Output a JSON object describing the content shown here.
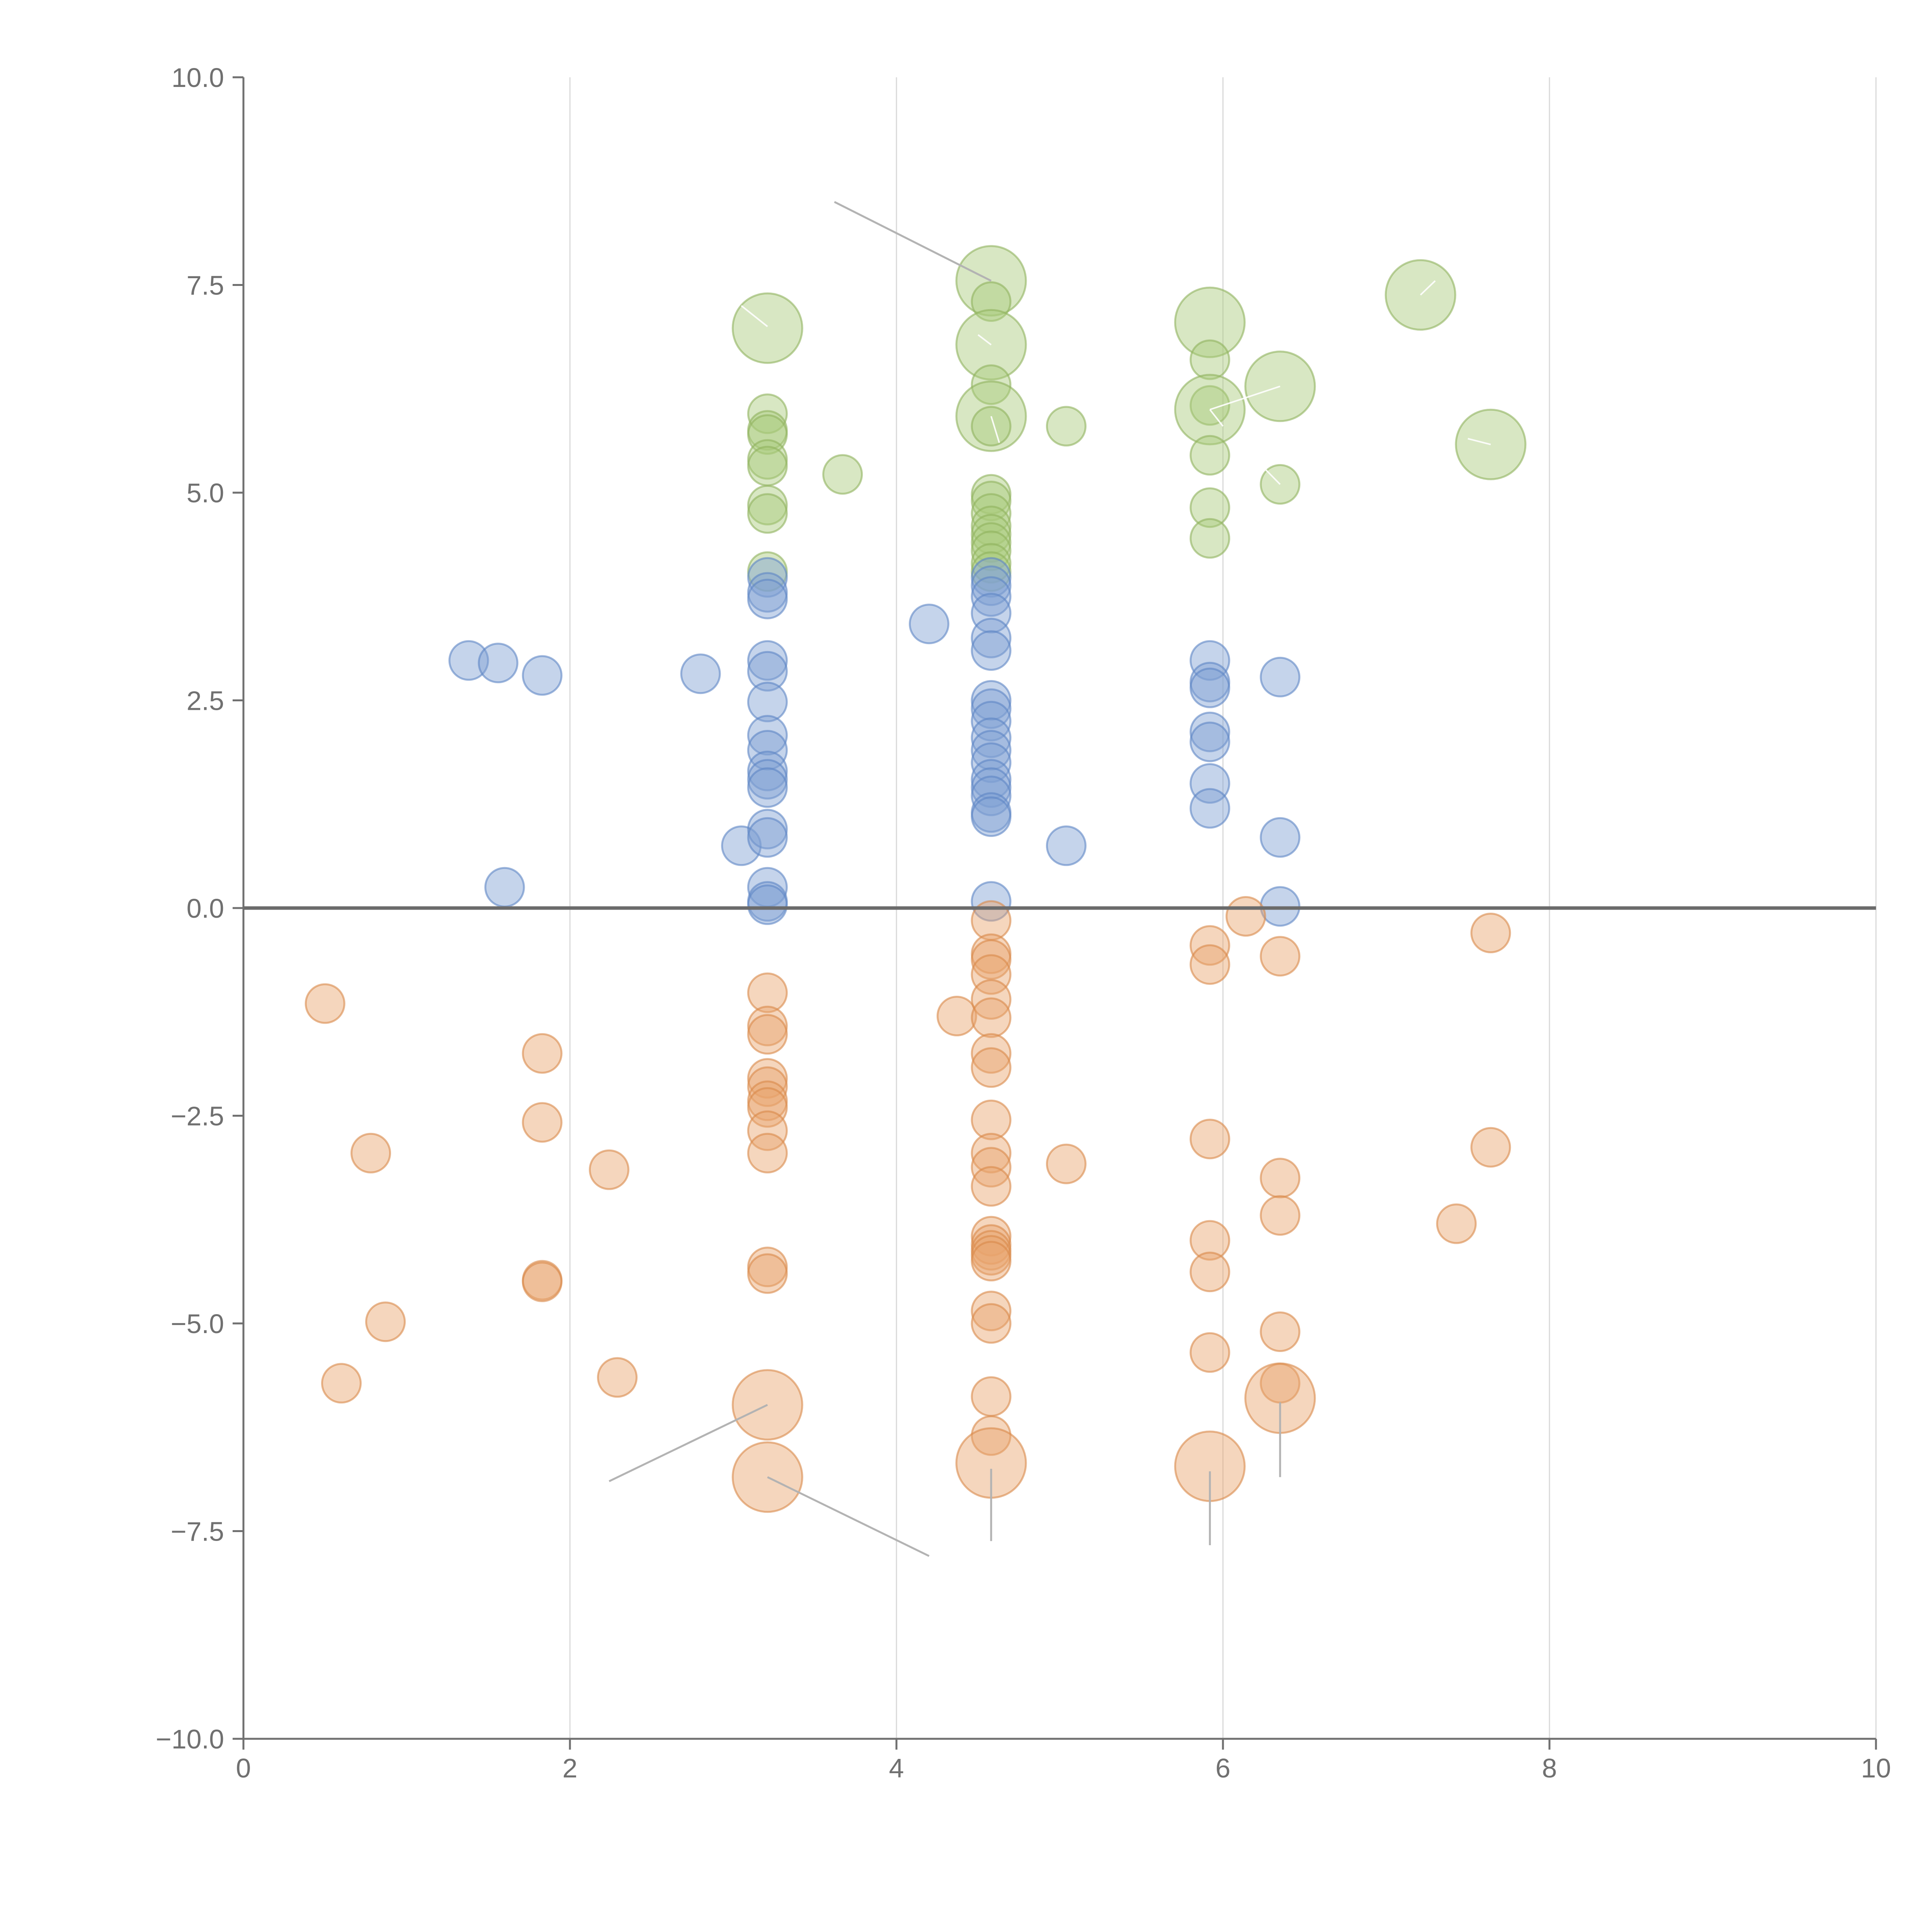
{
  "colors": {
    "green_fill": "#a9c97a",
    "green_stroke": "#8fb35e",
    "blue_fill": "#7fa0d2",
    "blue_stroke": "#5d86c4",
    "orange_fill": "#e9a46c",
    "orange_stroke": "#d9894a",
    "axis": "#707070",
    "grid": "#d9d9d9",
    "zero": "#6b6b6b",
    "leader": "#b3b3b3"
  },
  "chart_data": {
    "type": "scatter",
    "title": "",
    "xlabel": "",
    "ylabel": "",
    "xlim": [
      0,
      10
    ],
    "ylim": [
      -10,
      10
    ],
    "x_ticks": [
      "0",
      "2",
      "4",
      "6",
      "8",
      "10"
    ],
    "y_ticks": [
      "10.0",
      "7.5",
      "5.0",
      "2.5",
      "0.0",
      "−2.5",
      "−5.0",
      "−7.5",
      "−10.0"
    ],
    "grid": "vertical",
    "zero_line": true,
    "series": [
      {
        "color": "green",
        "points": [
          [
            4.58,
            7.55,
            3
          ],
          [
            4.58,
            7.3,
            1
          ],
          [
            4.58,
            6.78,
            3
          ],
          [
            4.58,
            6.3,
            1
          ],
          [
            4.58,
            5.92,
            3
          ],
          [
            4.58,
            5.8,
            1
          ],
          [
            4.58,
            4.98,
            1
          ],
          [
            4.58,
            4.9,
            1
          ],
          [
            4.58,
            4.75,
            1
          ],
          [
            4.58,
            4.6,
            1
          ],
          [
            4.58,
            4.5,
            1
          ],
          [
            4.58,
            4.4,
            1
          ],
          [
            4.58,
            4.3,
            1
          ],
          [
            4.58,
            4.15,
            1
          ],
          [
            4.58,
            4.05,
            1
          ],
          [
            3.21,
            6.98,
            3
          ],
          [
            3.21,
            5.95,
            1
          ],
          [
            3.21,
            5.75,
            1
          ],
          [
            3.21,
            5.7,
            1
          ],
          [
            3.21,
            5.4,
            1
          ],
          [
            3.21,
            5.32,
            1
          ],
          [
            3.21,
            4.85,
            1
          ],
          [
            3.21,
            4.75,
            1
          ],
          [
            3.21,
            4.05,
            1
          ],
          [
            3.67,
            5.22,
            1
          ],
          [
            5.04,
            5.8,
            1
          ],
          [
            5.92,
            7.05,
            3
          ],
          [
            5.92,
            6.6,
            1
          ],
          [
            5.92,
            6.05,
            1
          ],
          [
            5.92,
            6.0,
            3
          ],
          [
            5.92,
            5.45,
            1
          ],
          [
            5.92,
            4.82,
            1
          ],
          [
            5.92,
            4.45,
            1
          ],
          [
            6.35,
            6.28,
            3
          ],
          [
            6.35,
            5.1,
            1
          ],
          [
            7.21,
            7.38,
            3
          ],
          [
            7.64,
            5.58,
            3
          ]
        ]
      },
      {
        "color": "blue",
        "points": [
          [
            1.38,
            2.98,
            1
          ],
          [
            1.56,
            2.95,
            1
          ],
          [
            1.83,
            2.8,
            1
          ],
          [
            2.8,
            2.82,
            1
          ],
          [
            1.6,
            0.25,
            1
          ],
          [
            3.05,
            0.75,
            1
          ],
          [
            3.21,
            3.98,
            1
          ],
          [
            3.21,
            3.8,
            1
          ],
          [
            3.21,
            3.72,
            1
          ],
          [
            3.21,
            2.98,
            1
          ],
          [
            3.21,
            2.85,
            1
          ],
          [
            3.21,
            2.48,
            1
          ],
          [
            3.21,
            2.08,
            1
          ],
          [
            3.21,
            1.9,
            1
          ],
          [
            3.21,
            1.65,
            1
          ],
          [
            3.21,
            1.55,
            1
          ],
          [
            3.21,
            1.45,
            1
          ],
          [
            3.21,
            0.95,
            1
          ],
          [
            3.21,
            0.85,
            1
          ],
          [
            3.21,
            0.25,
            1
          ],
          [
            3.21,
            0.08,
            1
          ],
          [
            3.21,
            0.04,
            1
          ],
          [
            4.2,
            3.42,
            1
          ],
          [
            4.58,
            3.98,
            1
          ],
          [
            4.58,
            3.88,
            1
          ],
          [
            4.58,
            3.75,
            1
          ],
          [
            4.58,
            3.55,
            1
          ],
          [
            4.58,
            3.25,
            1
          ],
          [
            4.58,
            3.1,
            1
          ],
          [
            4.58,
            2.5,
            1
          ],
          [
            4.58,
            2.4,
            1
          ],
          [
            4.58,
            2.25,
            1
          ],
          [
            4.58,
            2.05,
            1
          ],
          [
            4.58,
            1.9,
            1
          ],
          [
            4.58,
            1.75,
            1
          ],
          [
            4.58,
            1.55,
            1
          ],
          [
            4.58,
            1.45,
            1
          ],
          [
            4.58,
            1.35,
            1
          ],
          [
            4.58,
            1.15,
            1
          ],
          [
            4.58,
            1.1,
            1
          ],
          [
            4.58,
            0.08,
            1
          ],
          [
            5.04,
            0.75,
            1
          ],
          [
            5.92,
            2.98,
            1
          ],
          [
            5.92,
            2.72,
            1
          ],
          [
            5.92,
            2.65,
            1
          ],
          [
            5.92,
            2.12,
            1
          ],
          [
            5.92,
            2.0,
            1
          ],
          [
            5.92,
            1.5,
            1
          ],
          [
            5.92,
            1.2,
            1
          ],
          [
            6.35,
            2.78,
            1
          ],
          [
            6.35,
            0.85,
            1
          ],
          [
            6.35,
            0.02,
            1
          ]
        ]
      },
      {
        "color": "orange",
        "points": [
          [
            0.5,
            -1.15,
            1
          ],
          [
            0.78,
            -2.95,
            1
          ],
          [
            0.87,
            -4.98,
            1
          ],
          [
            0.6,
            -5.72,
            1
          ],
          [
            1.83,
            -1.75,
            1
          ],
          [
            1.83,
            -2.58,
            1
          ],
          [
            1.83,
            -4.48,
            1
          ],
          [
            1.83,
            -4.5,
            1
          ],
          [
            2.24,
            -3.15,
            1
          ],
          [
            2.29,
            -5.65,
            1
          ],
          [
            3.21,
            -1.02,
            1
          ],
          [
            3.21,
            -1.42,
            1
          ],
          [
            3.21,
            -1.52,
            1
          ],
          [
            3.21,
            -2.05,
            1
          ],
          [
            3.21,
            -2.15,
            1
          ],
          [
            3.21,
            -2.32,
            1
          ],
          [
            3.21,
            -2.4,
            1
          ],
          [
            3.21,
            -2.68,
            1
          ],
          [
            3.21,
            -2.95,
            1
          ],
          [
            3.21,
            -4.32,
            1
          ],
          [
            3.21,
            -4.4,
            1
          ],
          [
            3.21,
            -5.98,
            3
          ],
          [
            3.21,
            -6.85,
            3
          ],
          [
            4.37,
            -1.3,
            1
          ],
          [
            4.58,
            -0.15,
            1
          ],
          [
            4.58,
            -0.55,
            1
          ],
          [
            4.58,
            -0.62,
            1
          ],
          [
            4.58,
            -0.8,
            1
          ],
          [
            4.58,
            -1.1,
            1
          ],
          [
            4.58,
            -1.32,
            1
          ],
          [
            4.58,
            -1.75,
            1
          ],
          [
            4.58,
            -1.92,
            1
          ],
          [
            4.58,
            -2.55,
            1
          ],
          [
            4.58,
            -2.95,
            1
          ],
          [
            4.58,
            -3.12,
            1
          ],
          [
            4.58,
            -3.35,
            1
          ],
          [
            4.58,
            -3.95,
            1
          ],
          [
            4.58,
            -4.05,
            1
          ],
          [
            4.58,
            -4.12,
            1
          ],
          [
            4.58,
            -4.18,
            1
          ],
          [
            4.58,
            -4.25,
            1
          ],
          [
            4.58,
            -4.85,
            1
          ],
          [
            4.58,
            -5.0,
            1
          ],
          [
            4.58,
            -5.88,
            1
          ],
          [
            4.58,
            -6.35,
            1
          ],
          [
            4.58,
            -6.68,
            3
          ],
          [
            5.04,
            -3.08,
            1
          ],
          [
            5.92,
            -0.45,
            1
          ],
          [
            5.92,
            -0.68,
            1
          ],
          [
            5.92,
            -2.78,
            1
          ],
          [
            5.92,
            -4.0,
            1
          ],
          [
            5.92,
            -4.38,
            1
          ],
          [
            5.92,
            -5.35,
            1
          ],
          [
            5.92,
            -6.72,
            3
          ],
          [
            6.14,
            -0.1,
            1
          ],
          [
            6.35,
            -0.58,
            1
          ],
          [
            6.35,
            -3.25,
            1
          ],
          [
            6.35,
            -3.7,
            1
          ],
          [
            6.35,
            -5.1,
            1
          ],
          [
            6.35,
            -5.72,
            1
          ],
          [
            6.35,
            -5.9,
            3
          ],
          [
            7.43,
            -3.8,
            1
          ],
          [
            7.64,
            -0.3,
            1
          ],
          [
            7.64,
            -2.88,
            1
          ]
        ]
      }
    ],
    "callout_lines": [
      [
        [
          4.58,
          7.55
        ],
        [
          3.62,
          8.5
        ],
        "grey"
      ],
      [
        [
          3.21,
          7.0
        ],
        [
          3.05,
          7.25
        ],
        "white"
      ],
      [
        [
          4.58,
          6.78
        ],
        [
          4.5,
          6.9
        ],
        "white"
      ],
      [
        [
          4.58,
          5.92
        ],
        [
          4.63,
          5.6
        ],
        "white"
      ],
      [
        [
          5.92,
          6.0
        ],
        [
          6.35,
          6.28
        ],
        "white"
      ],
      [
        [
          5.92,
          6.0
        ],
        [
          6.0,
          5.8
        ],
        "white"
      ],
      [
        [
          6.35,
          5.1
        ],
        [
          6.25,
          5.3
        ],
        "white"
      ],
      [
        [
          7.21,
          7.38
        ],
        [
          7.3,
          7.55
        ],
        "white"
      ],
      [
        [
          7.64,
          5.58
        ],
        [
          7.5,
          5.65
        ],
        "white"
      ],
      [
        [
          3.21,
          -5.98
        ],
        [
          2.24,
          -6.9
        ],
        "grey"
      ],
      [
        [
          3.21,
          -6.85
        ],
        [
          4.2,
          -7.8
        ],
        "grey"
      ],
      [
        [
          4.58,
          -6.75
        ],
        [
          4.58,
          -7.62
        ],
        "grey"
      ],
      [
        [
          5.92,
          -6.78
        ],
        [
          5.92,
          -7.67
        ],
        "grey"
      ],
      [
        [
          6.35,
          -5.95
        ],
        [
          6.35,
          -6.85
        ],
        "grey"
      ]
    ]
  }
}
